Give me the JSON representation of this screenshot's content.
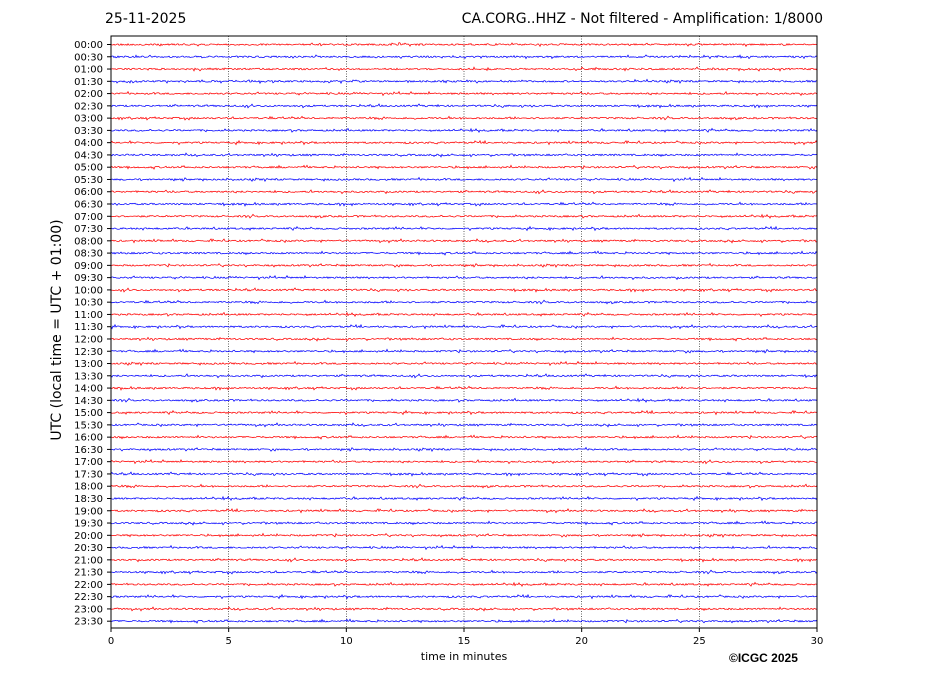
{
  "header": {
    "date": "25-11-2025",
    "title": "CA.CORG..HHZ - Not filtered - Amplification: 1/8000"
  },
  "chart_data": {
    "type": "line",
    "title": "CA.CORG..HHZ - Not filtered - Amplification: 1/8000",
    "xlabel": "time in minutes",
    "ylabel": "UTC (local time = UTC + 01:00)",
    "xlim": [
      0,
      30
    ],
    "x_ticks": [
      0,
      5,
      10,
      15,
      20,
      25,
      30
    ],
    "grid": "vertical dotted at x ticks",
    "row_labels": [
      "00:00",
      "00:30",
      "01:00",
      "01:30",
      "02:00",
      "02:30",
      "03:00",
      "03:30",
      "04:00",
      "04:30",
      "05:00",
      "05:30",
      "06:00",
      "06:30",
      "07:00",
      "07:30",
      "08:00",
      "08:30",
      "09:00",
      "09:30",
      "10:00",
      "10:30",
      "11:00",
      "11:30",
      "12:00",
      "12:30",
      "13:00",
      "13:30",
      "14:00",
      "14:30",
      "15:00",
      "15:30",
      "16:00",
      "16:30",
      "17:00",
      "17:30",
      "18:00",
      "18:30",
      "19:00",
      "19:30",
      "20:00",
      "20:30",
      "21:00",
      "21:30",
      "22:00",
      "22:30",
      "23:00",
      "23:30"
    ],
    "trace_colors": [
      "#ff0000",
      "#0000ff"
    ]
  },
  "footer": {
    "copyright": "©ICGC 2025"
  }
}
